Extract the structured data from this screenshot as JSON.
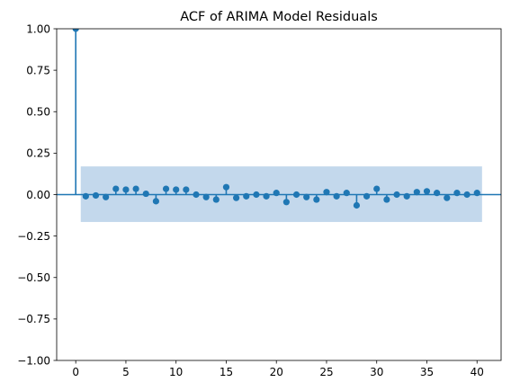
{
  "chart_data": {
    "type": "stem",
    "title": "ACF of ARIMA Model Residuals",
    "xlabel": "",
    "ylabel": "",
    "xlim": [
      -1.9,
      42.4
    ],
    "ylim": [
      -1.0,
      1.0
    ],
    "xticks": [
      0,
      5,
      10,
      15,
      20,
      25,
      30,
      35,
      40
    ],
    "yticks": [
      -1.0,
      -0.75,
      -0.5,
      -0.25,
      0.0,
      0.25,
      0.5,
      0.75,
      1.0
    ],
    "ytick_labels": [
      "−1.00",
      "−0.75",
      "−0.50",
      "−0.25",
      "0.00",
      "0.25",
      "0.50",
      "0.75",
      "1.00"
    ],
    "grid": false,
    "lags": [
      0,
      1,
      2,
      3,
      4,
      5,
      6,
      7,
      8,
      9,
      10,
      11,
      12,
      13,
      14,
      15,
      16,
      17,
      18,
      19,
      20,
      21,
      22,
      23,
      24,
      25,
      26,
      27,
      28,
      29,
      30,
      31,
      32,
      33,
      34,
      35,
      36,
      37,
      38,
      39,
      40
    ],
    "values": [
      1.0,
      -0.01,
      -0.005,
      -0.015,
      0.035,
      0.03,
      0.035,
      0.005,
      -0.04,
      0.035,
      0.03,
      0.03,
      0.0,
      -0.015,
      -0.03,
      0.045,
      -0.02,
      -0.01,
      0.0,
      -0.01,
      0.01,
      -0.045,
      0.0,
      -0.015,
      -0.03,
      0.015,
      -0.01,
      0.01,
      -0.065,
      -0.01,
      0.035,
      -0.03,
      0.0,
      -0.01,
      0.015,
      0.02,
      0.01,
      -0.02,
      0.01,
      0.0,
      0.01
    ],
    "confidence_band": {
      "x_start": 0.5,
      "x_end": 40.5,
      "upper": 0.17,
      "lower": -0.165
    },
    "colors": {
      "marker": "#1f77b4",
      "stem": "#1f77b4",
      "zero_line": "#1f77b4",
      "band": "#c3d8ec",
      "axes": "#000000"
    }
  }
}
